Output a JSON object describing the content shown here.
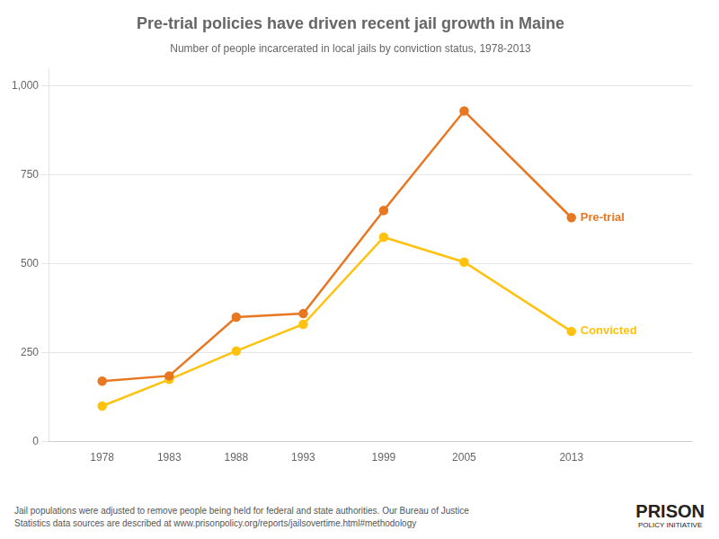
{
  "chart_data": {
    "type": "line",
    "title": "Pre-trial policies have driven recent jail growth in Maine",
    "subtitle": "Number of people incarcerated in local jails by conviction status, 1978-2013",
    "x": [
      1978,
      1983,
      1988,
      1993,
      1999,
      2005,
      2013
    ],
    "series": [
      {
        "name": "Pre-trial",
        "color": "#E87722",
        "values": [
          170,
          185,
          350,
          360,
          650,
          930,
          630
        ]
      },
      {
        "name": "Convicted",
        "color": "#FFC20E",
        "values": [
          100,
          175,
          255,
          330,
          575,
          505,
          310
        ]
      }
    ],
    "xlim": [
      1974,
      2022
    ],
    "xticks": [
      1978,
      1983,
      1988,
      1993,
      1999,
      2005,
      2013
    ],
    "ylim": [
      0,
      1050
    ],
    "yticks": [
      0,
      250,
      500,
      750,
      {
        "value": 1000,
        "label": "1,000"
      }
    ],
    "grid": true,
    "marker": "circle",
    "line_style": "solid",
    "annotations": [
      "Jail populations were adjusted to remove people being held for federal and state authorities. Our Bureau of Justice",
      "Statistics data sources are described at www.prisonpolicy.org/reports/jailsovertime.html#methodology",
      "PRISON",
      "POLICY INITIATIVE"
    ]
  }
}
